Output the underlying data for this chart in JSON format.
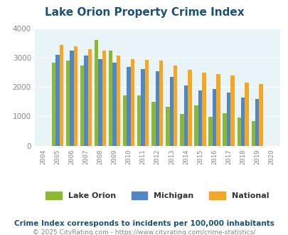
{
  "title": "Lake Orion Property Crime Index",
  "title_color": "#1a5276",
  "years": [
    2004,
    2005,
    2006,
    2007,
    2008,
    2009,
    2010,
    2011,
    2012,
    2013,
    2014,
    2015,
    2016,
    2017,
    2018,
    2019,
    2020
  ],
  "lake_orion": [
    null,
    2820,
    2910,
    2720,
    3600,
    3250,
    1700,
    1720,
    1490,
    1320,
    1090,
    1370,
    990,
    1110,
    960,
    830,
    null
  ],
  "michigan": [
    null,
    3090,
    3230,
    3070,
    2950,
    2830,
    2680,
    2620,
    2540,
    2330,
    2040,
    1890,
    1920,
    1810,
    1640,
    1590,
    null
  ],
  "national": [
    null,
    3430,
    3380,
    3290,
    3250,
    3060,
    2950,
    2930,
    2890,
    2730,
    2590,
    2490,
    2450,
    2380,
    2160,
    2100,
    null
  ],
  "lake_orion_color": "#8db832",
  "michigan_color": "#4f86c6",
  "national_color": "#f5a623",
  "background_color": "#e8f4f8",
  "ylim": [
    0,
    4000
  ],
  "yticks": [
    0,
    1000,
    2000,
    3000,
    4000
  ],
  "legend_labels": [
    "Lake Orion",
    "Michigan",
    "National"
  ],
  "footnote1": "Crime Index corresponds to incidents per 100,000 inhabitants",
  "footnote2": "© 2025 CityRating.com - https://www.cityrating.com/crime-statistics/",
  "footnote1_color": "#1a5276",
  "footnote2_color": "#888888"
}
